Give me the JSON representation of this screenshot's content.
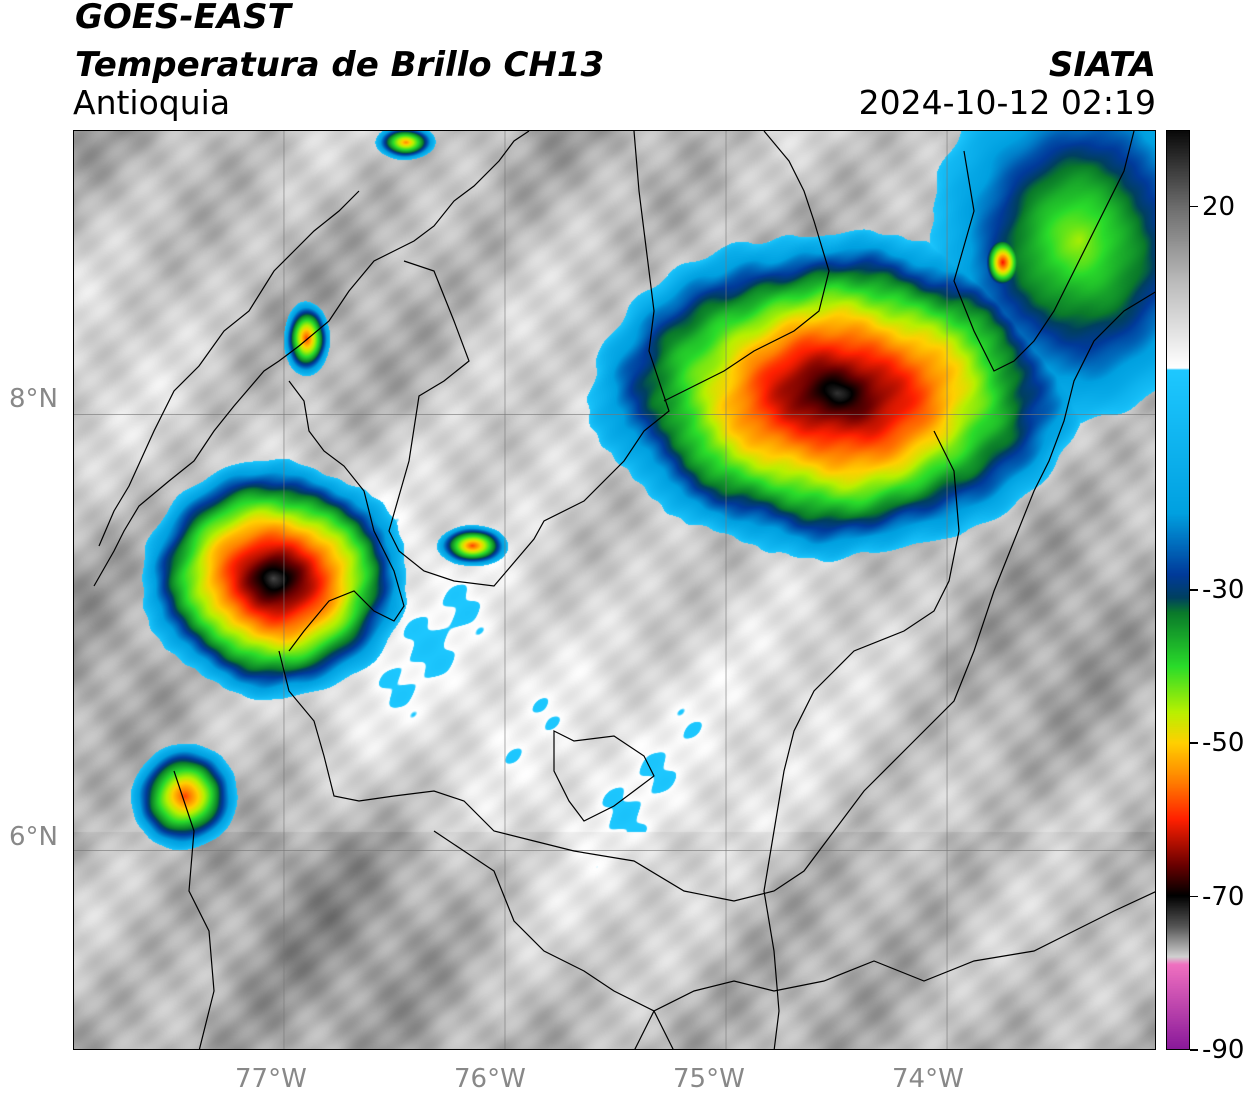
{
  "header": {
    "satellite": "GOES-EAST",
    "product": "Temperatura de Brillo CH13",
    "region": "Antioquia",
    "source": "SIATA",
    "datetime": "2024-10-12 02:19"
  },
  "map": {
    "lon_ticks": [
      "77°W",
      "76°W",
      "75°W",
      "74°W"
    ],
    "lat_ticks": [
      "8°N",
      "6°N"
    ],
    "lon_range": [
      -77.95,
      -73.05
    ],
    "lat_range": [
      5.08,
      9.3
    ],
    "lon_values": [
      -77,
      -76,
      -75,
      -74
    ],
    "lat_values": [
      8,
      6
    ]
  },
  "colorbar": {
    "labels": [
      "20",
      "-30",
      "-50",
      "-70",
      "-90"
    ],
    "values": [
      20,
      -30,
      -50,
      -70,
      -90
    ],
    "range": [
      -90,
      30
    ],
    "stops": [
      {
        "v": 30,
        "c": "#0a0a0a"
      },
      {
        "v": 20,
        "c": "#6e6e6e"
      },
      {
        "v": 10,
        "c": "#bdbdbd"
      },
      {
        "v": 0,
        "c": "#fafafa"
      },
      {
        "v": -1,
        "c": "#ffffff"
      },
      {
        "v": -1.2,
        "c": "#1ec8ff"
      },
      {
        "v": -20,
        "c": "#00a0e0"
      },
      {
        "v": -28,
        "c": "#003a9a"
      },
      {
        "v": -31,
        "c": "#004060"
      },
      {
        "v": -33,
        "c": "#0a7a2a"
      },
      {
        "v": -40,
        "c": "#2adc2a"
      },
      {
        "v": -46,
        "c": "#b8f000"
      },
      {
        "v": -50,
        "c": "#ffd000"
      },
      {
        "v": -55,
        "c": "#ff8000"
      },
      {
        "v": -60,
        "c": "#ff2000"
      },
      {
        "v": -66,
        "c": "#6a0000"
      },
      {
        "v": -70,
        "c": "#000000"
      },
      {
        "v": -74,
        "c": "#555555"
      },
      {
        "v": -78,
        "c": "#d0d0d0"
      },
      {
        "v": -79,
        "c": "#f070c0"
      },
      {
        "v": -90,
        "c": "#8a1a9a"
      }
    ]
  },
  "colors": {
    "cloud_base": "#8c8c8c",
    "bright_cloud": "#efefef",
    "cold_edge": "#00bfff",
    "core_dark": "#3a0000"
  },
  "storm_cells": [
    {
      "name": "storm-cell-north-central",
      "lon": -74.5,
      "lat": 8.1,
      "rx": 0.8,
      "ry": 0.55,
      "min_temp": -74
    },
    {
      "name": "storm-cell-west-uraba",
      "lon": -77.05,
      "lat": 7.25,
      "rx": 0.45,
      "ry": 0.4,
      "min_temp": -74
    },
    {
      "name": "storm-cell-northeast",
      "lon": -73.4,
      "lat": 8.8,
      "rx": 0.5,
      "ry": 0.6,
      "min_temp": -45
    },
    {
      "name": "storm-cell-southwest-choco",
      "lon": -77.45,
      "lat": 6.25,
      "rx": 0.18,
      "ry": 0.18,
      "min_temp": -58
    },
    {
      "name": "storm-cell-darien",
      "lon": -76.9,
      "lat": 8.35,
      "rx": 0.08,
      "ry": 0.13,
      "min_temp": -60
    },
    {
      "name": "storm-cell-north-coast",
      "lon": -76.45,
      "lat": 9.25,
      "rx": 0.1,
      "ry": 0.06,
      "min_temp": -55
    },
    {
      "name": "storm-cell-east-edge",
      "lon": -73.75,
      "lat": 8.7,
      "rx": 0.07,
      "ry": 0.1,
      "min_temp": -60
    },
    {
      "name": "storm-cell-central-small",
      "lon": -76.15,
      "lat": 7.4,
      "rx": 0.12,
      "ry": 0.07,
      "min_temp": -58
    }
  ]
}
